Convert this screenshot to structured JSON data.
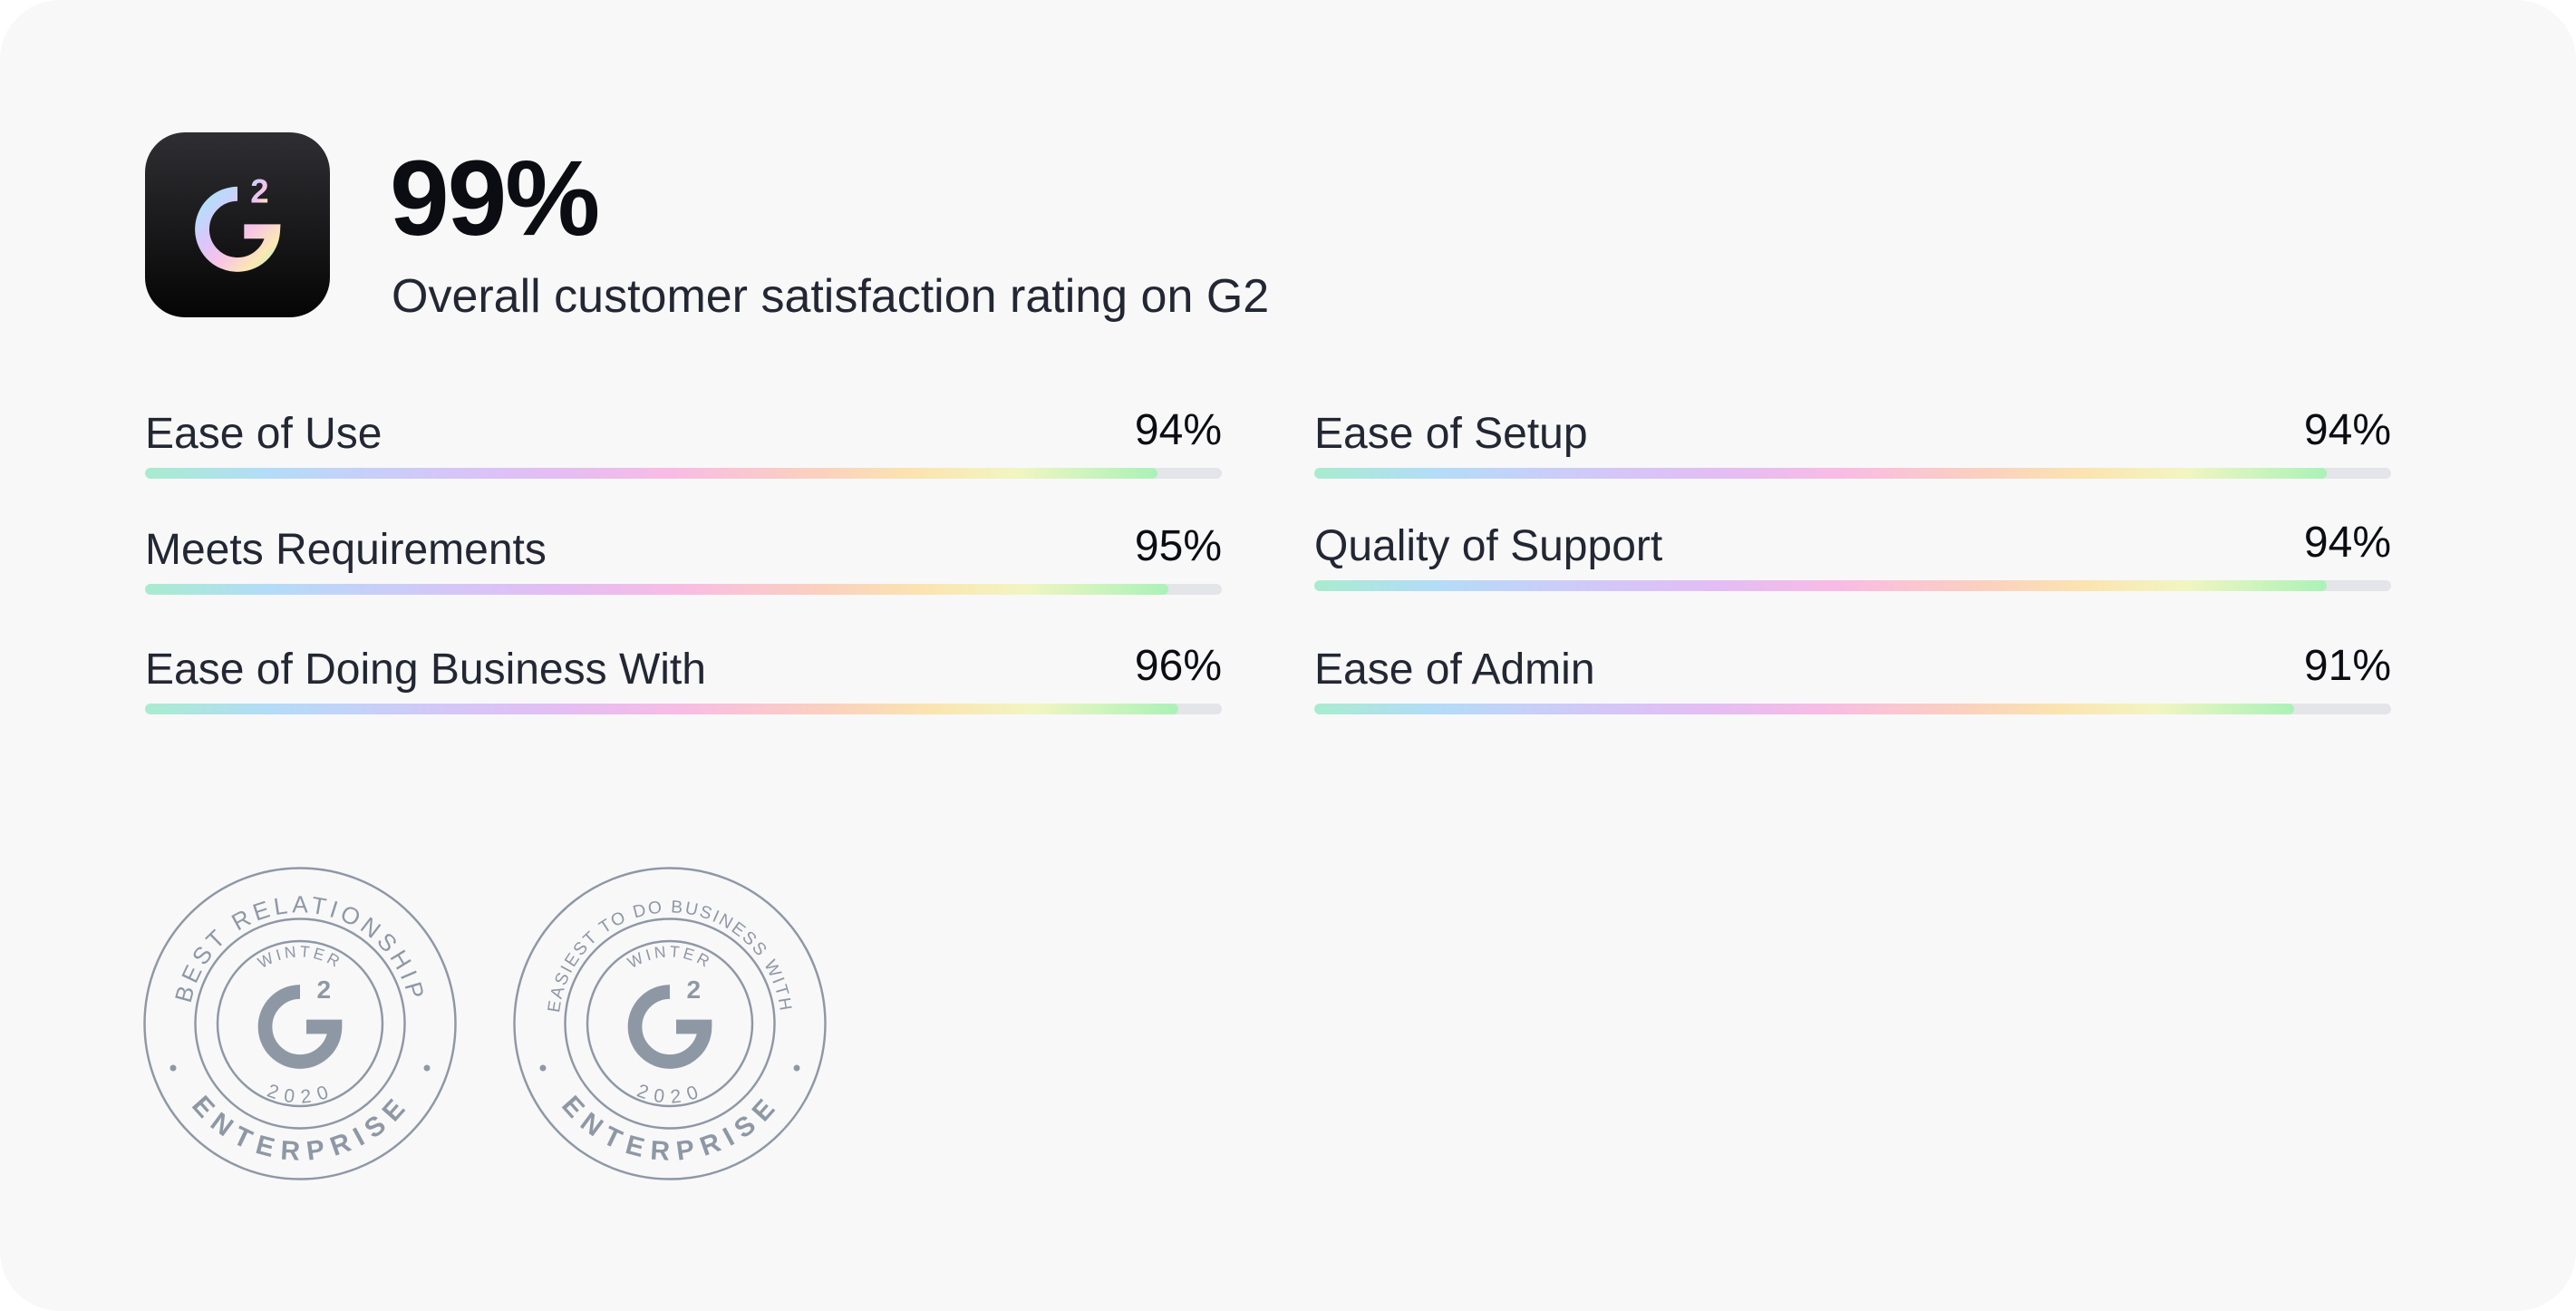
{
  "header": {
    "rating": "99%",
    "subtitle": "Overall customer satisfaction rating on G2",
    "logo_icon": "g2-logo-icon"
  },
  "metrics": [
    {
      "label": "Ease of Use",
      "value": "94%",
      "fill": 0.94
    },
    {
      "label": "Ease of Setup",
      "value": "94%",
      "fill": 0.94
    },
    {
      "label": "Meets Requirements",
      "value": "95%",
      "fill": 0.95
    },
    {
      "label": "Quality of Support",
      "value": "94%",
      "fill": 0.94
    },
    {
      "label": "Ease of Doing Business With",
      "value": "96%",
      "fill": 0.96
    },
    {
      "label": "Ease of Admin",
      "value": "91%",
      "fill": 0.91
    }
  ],
  "badges": [
    {
      "top_text": "BEST RELATIONSHIP",
      "season": "WINTER",
      "year": "2020",
      "segment": "ENTERPRISE"
    },
    {
      "top_text": "EASIEST TO DO BUSINESS WITH",
      "season": "WINTER",
      "year": "2020",
      "segment": "ENTERPRISE"
    }
  ],
  "colors": {
    "card_bg": "#f8f8f9",
    "text": "#222733",
    "badge_gray": "#8e98a5",
    "track": "#e4e5e9"
  }
}
